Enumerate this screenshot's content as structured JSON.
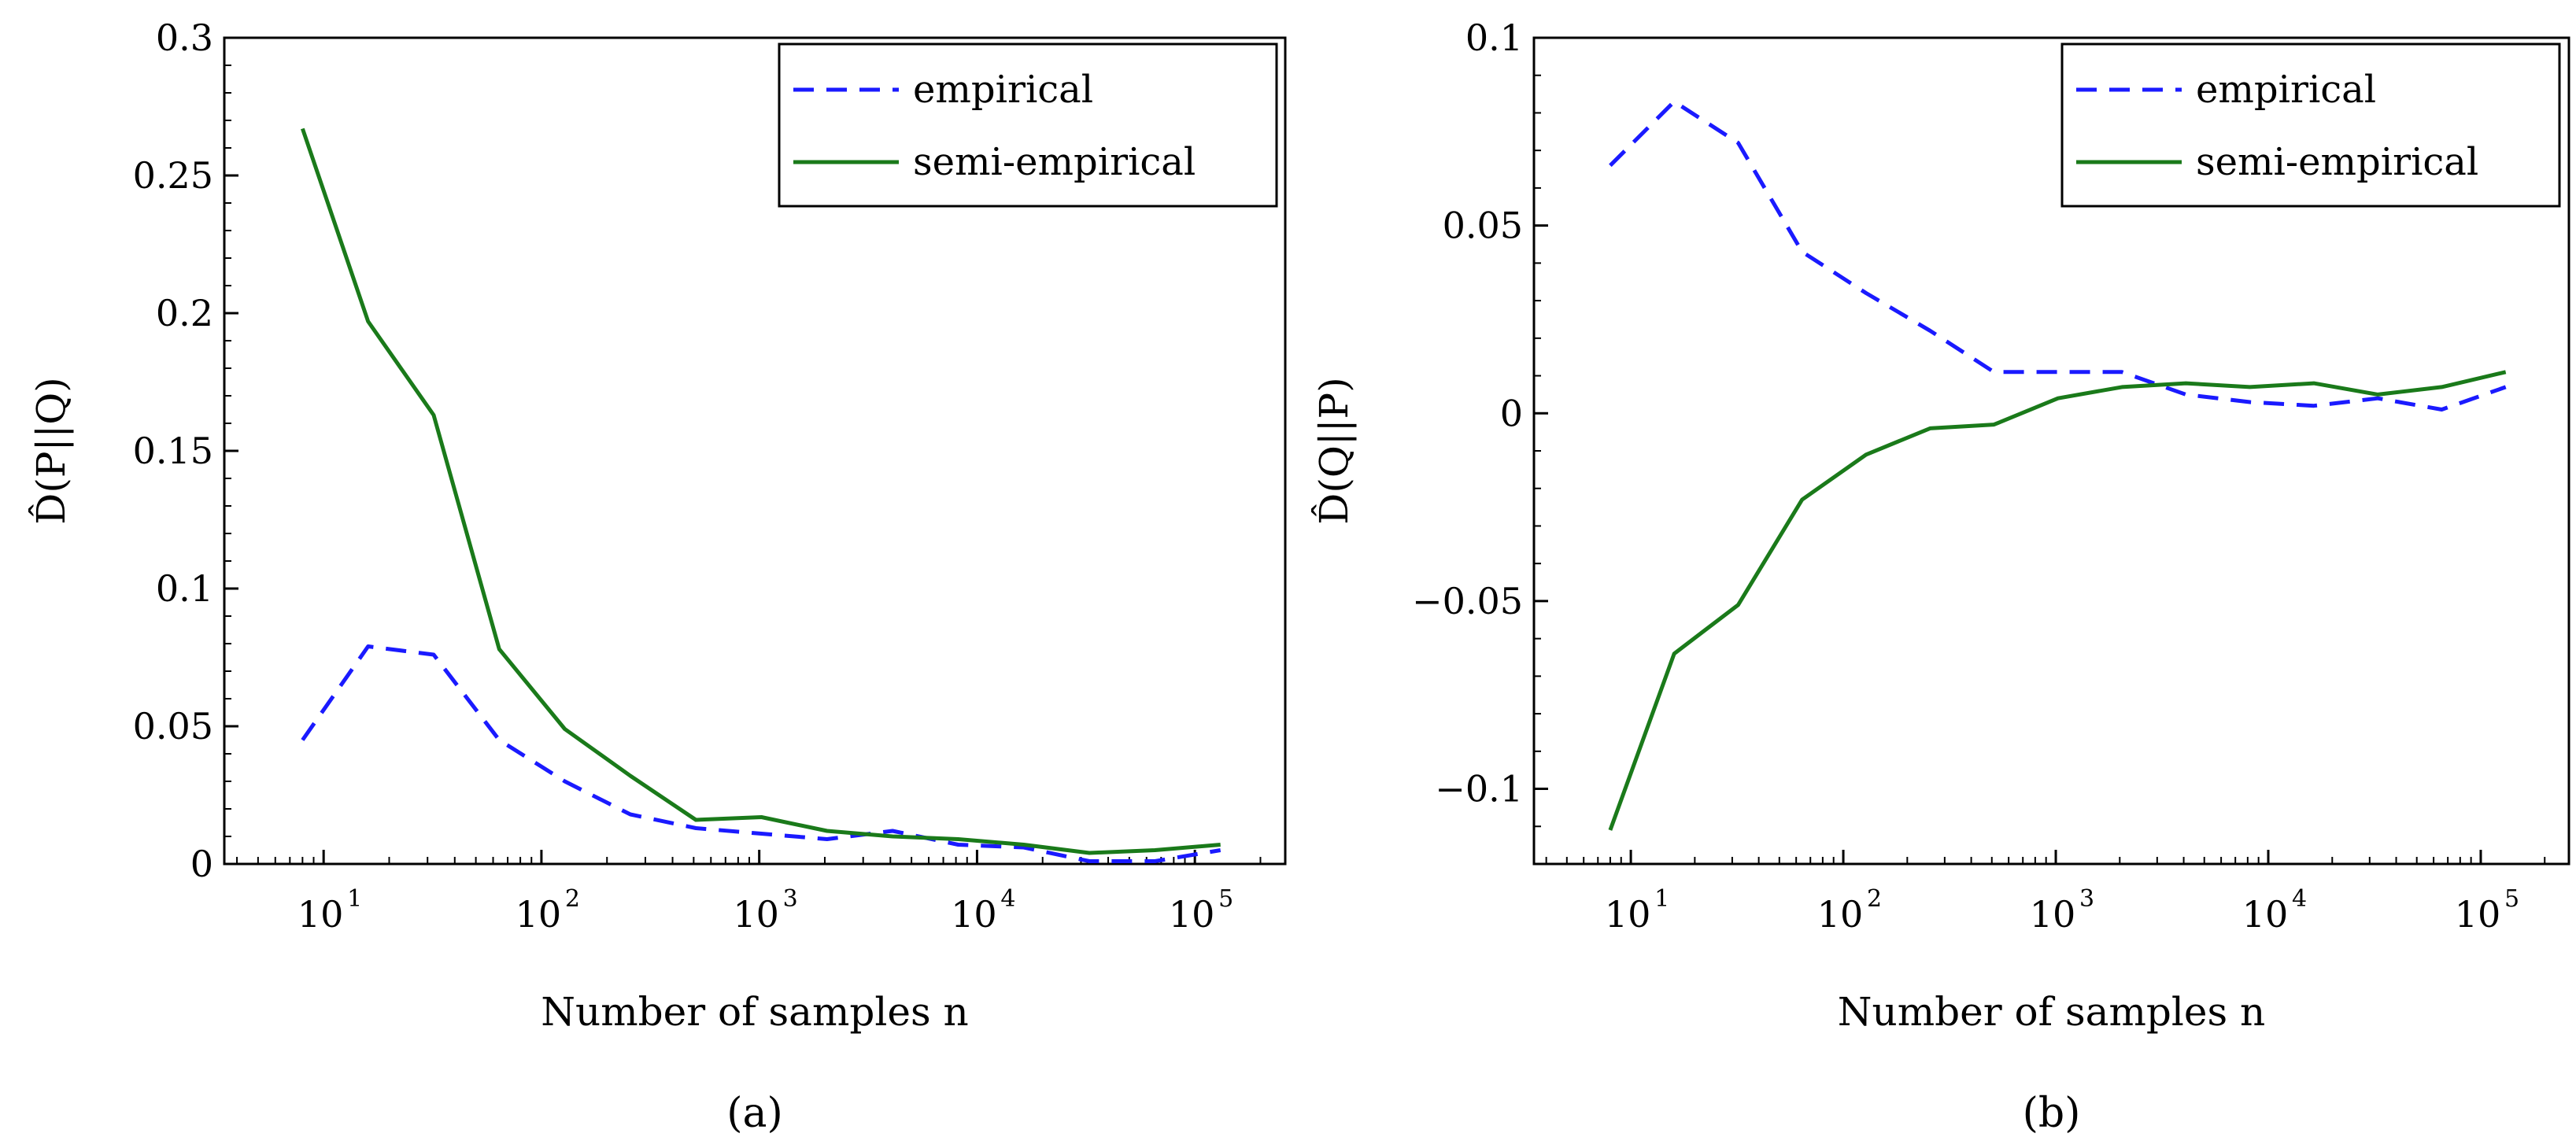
{
  "chart_data": [
    {
      "type": "line",
      "panel_label": "(a)",
      "xlabel": "Number of samples n",
      "ylabel": "D̂(P||Q)",
      "xscale": "log10",
      "xlim": [
        3.5,
        260000
      ],
      "ylim": [
        0,
        0.3
      ],
      "yticks": [
        {
          "value": 0,
          "label": "0"
        },
        {
          "value": 0.05,
          "label": "0.05"
        },
        {
          "value": 0.1,
          "label": "0.1"
        },
        {
          "value": 0.15,
          "label": "0.15"
        },
        {
          "value": 0.2,
          "label": "0.2"
        },
        {
          "value": 0.25,
          "label": "0.25"
        },
        {
          "value": 0.3,
          "label": "0.3"
        }
      ],
      "xticks": [
        {
          "value": 10,
          "base": "10",
          "exp": "1"
        },
        {
          "value": 100,
          "base": "10",
          "exp": "2"
        },
        {
          "value": 1000,
          "base": "10",
          "exp": "3"
        },
        {
          "value": 10000,
          "base": "10",
          "exp": "4"
        },
        {
          "value": 100000,
          "base": "10",
          "exp": "5"
        }
      ],
      "legend_position": "top-right",
      "x": [
        8,
        16,
        32,
        64,
        128,
        256,
        512,
        1024,
        2048,
        4096,
        8192,
        16384,
        32768,
        65536,
        131072
      ],
      "series": [
        {
          "name": "empirical",
          "style": "dashed",
          "color": "#1a1aff",
          "values": [
            0.045,
            0.079,
            0.076,
            0.045,
            0.03,
            0.018,
            0.013,
            0.011,
            0.009,
            0.012,
            0.007,
            0.006,
            0.001,
            0.001,
            0.005
          ]
        },
        {
          "name": "semi-empirical",
          "style": "solid",
          "color": "#1a7a1a",
          "values": [
            0.267,
            0.197,
            0.163,
            0.078,
            0.049,
            0.032,
            0.016,
            0.017,
            0.012,
            0.01,
            0.009,
            0.007,
            0.004,
            0.005,
            0.007
          ]
        }
      ]
    },
    {
      "type": "line",
      "panel_label": "(b)",
      "xlabel": "Number of samples n",
      "ylabel": "D̂(Q||P)",
      "xscale": "log10",
      "xlim": [
        3.5,
        260000
      ],
      "ylim": [
        -0.12,
        0.1
      ],
      "yticks": [
        {
          "value": -0.1,
          "label": "−0.1"
        },
        {
          "value": -0.05,
          "label": "−0.05"
        },
        {
          "value": 0,
          "label": "0"
        },
        {
          "value": 0.05,
          "label": "0.05"
        },
        {
          "value": 0.1,
          "label": "0.1"
        }
      ],
      "xticks": [
        {
          "value": 10,
          "base": "10",
          "exp": "1"
        },
        {
          "value": 100,
          "base": "10",
          "exp": "2"
        },
        {
          "value": 1000,
          "base": "10",
          "exp": "3"
        },
        {
          "value": 10000,
          "base": "10",
          "exp": "4"
        },
        {
          "value": 100000,
          "base": "10",
          "exp": "5"
        }
      ],
      "legend_position": "top-right",
      "x": [
        8,
        16,
        32,
        64,
        128,
        256,
        512,
        1024,
        2048,
        4096,
        8192,
        16384,
        32768,
        65536,
        131072
      ],
      "series": [
        {
          "name": "empirical",
          "style": "dashed",
          "color": "#1a1aff",
          "values": [
            0.066,
            0.083,
            0.072,
            0.043,
            0.032,
            0.022,
            0.011,
            0.011,
            0.011,
            0.005,
            0.003,
            0.002,
            0.004,
            0.001,
            0.007
          ]
        },
        {
          "name": "semi-empirical",
          "style": "solid",
          "color": "#1a7a1a",
          "values": [
            -0.111,
            -0.064,
            -0.051,
            -0.023,
            -0.011,
            -0.004,
            -0.003,
            0.004,
            0.007,
            0.008,
            0.007,
            0.008,
            0.005,
            0.007,
            0.011
          ]
        }
      ]
    }
  ]
}
